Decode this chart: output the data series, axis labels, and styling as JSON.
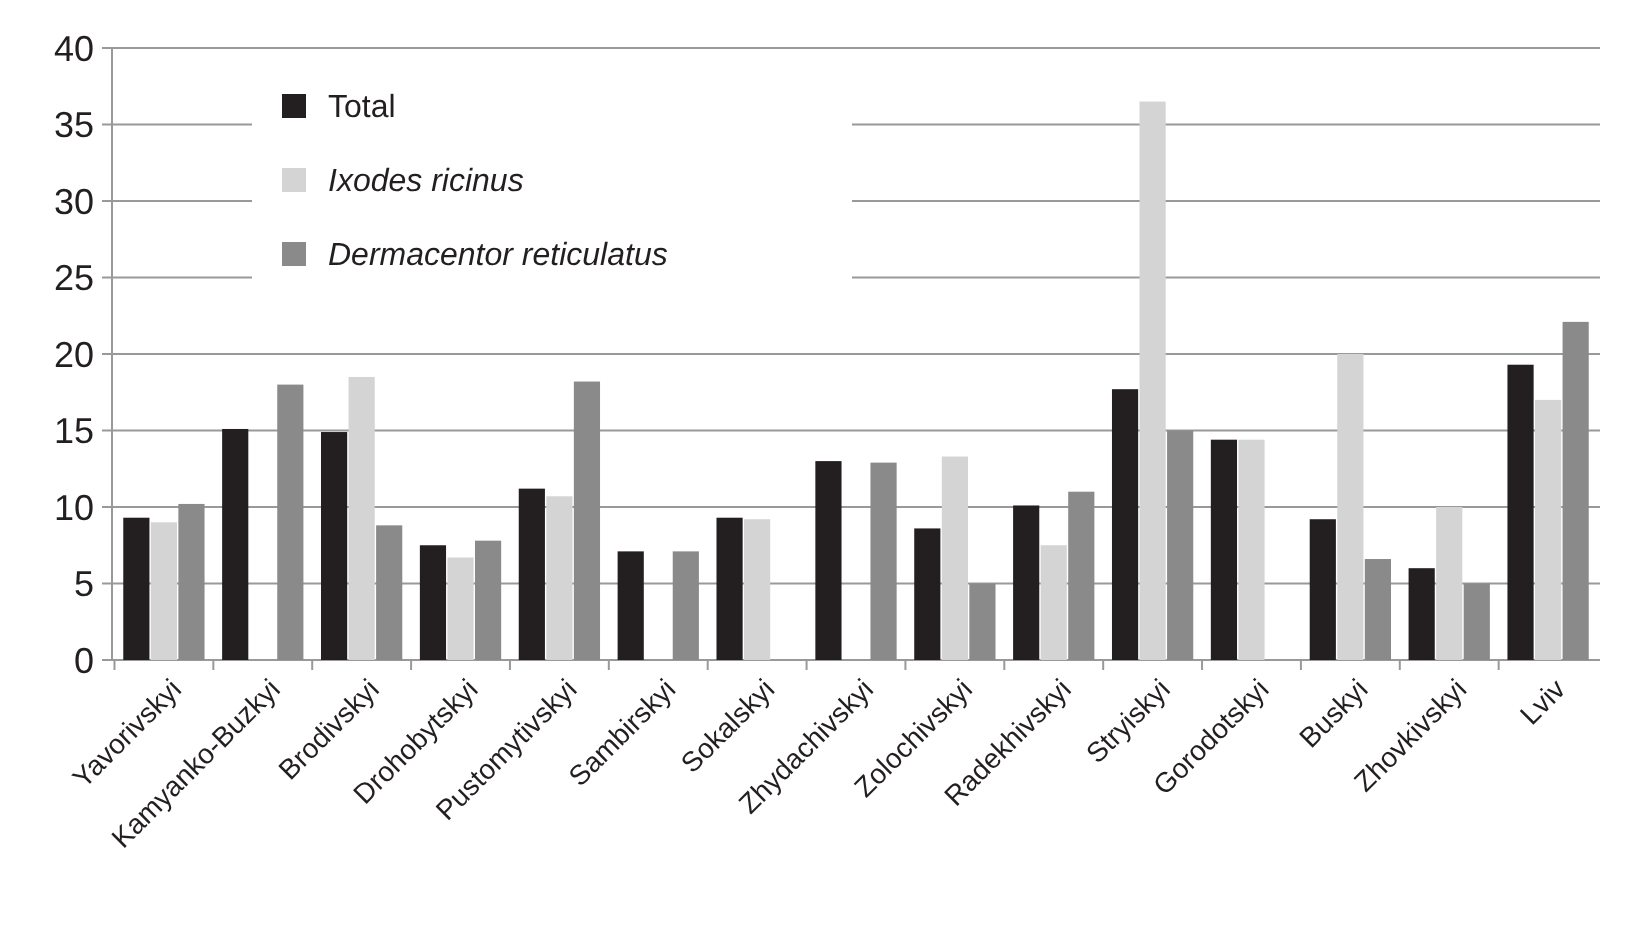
{
  "chart_data": {
    "type": "bar",
    "categories": [
      "Yavorivskyi",
      "Kamyanko-Buzkyi",
      "Brodivskyi",
      "Drohobytskyi",
      "Pustomytivskyi",
      "Sambirskyi",
      "Sokalskyi",
      "Zhydachivskyi",
      "Zolochivskyi",
      "Radekhivskyi",
      "Stryiskyi",
      "Gorodotskyi",
      "Buskyi",
      "Zhovkivskyi",
      "Lviv"
    ],
    "series": [
      {
        "name": "Total",
        "color": "#231f20",
        "values": [
          9.3,
          15.1,
          14.9,
          7.5,
          11.2,
          7.1,
          9.3,
          13.0,
          8.6,
          10.1,
          17.7,
          14.4,
          9.2,
          6.0,
          19.3
        ]
      },
      {
        "name": "Ixodes ricinus",
        "color": "#d4d4d4",
        "values": [
          9.0,
          0,
          18.5,
          6.7,
          10.7,
          0,
          9.2,
          0,
          13.3,
          7.5,
          36.5,
          14.4,
          20.0,
          10.0,
          17.0
        ]
      },
      {
        "name": "Dermacentor reticulatus",
        "color": "#8a8a8a",
        "values": [
          10.2,
          18.0,
          8.8,
          7.8,
          18.2,
          7.1,
          0,
          12.9,
          5.0,
          11.0,
          15.0,
          0,
          6.6,
          5.0,
          22.1
        ]
      }
    ],
    "ylim": [
      0,
      40
    ],
    "yticks": [
      0,
      5,
      10,
      15,
      20,
      25,
      30,
      35,
      40
    ],
    "grid": "y",
    "legend": "top left"
  }
}
